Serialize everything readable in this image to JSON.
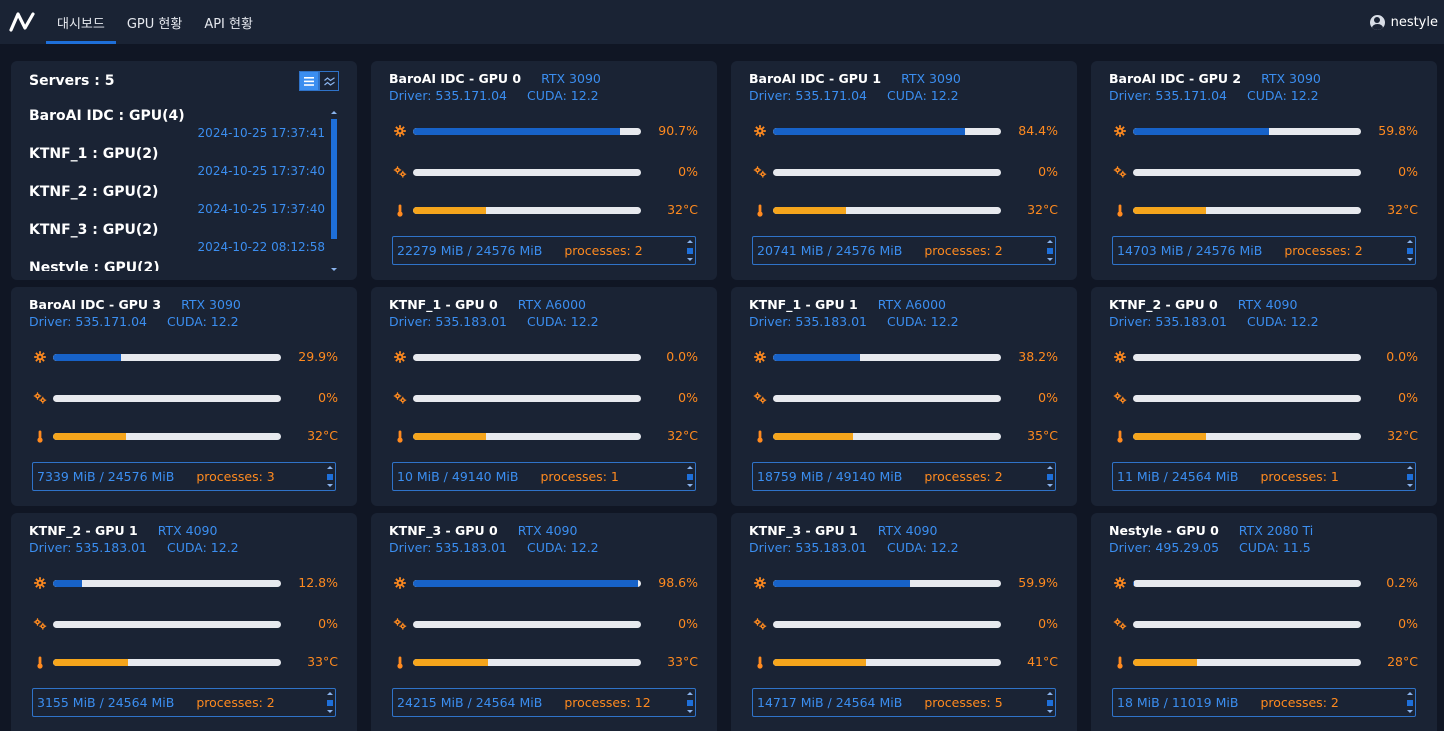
{
  "nav": {
    "tabs": [
      {
        "label": "대시보드",
        "active": true
      },
      {
        "label": "GPU 현황",
        "active": false
      },
      {
        "label": "API 현황",
        "active": false
      }
    ],
    "user": "nestyle"
  },
  "servers": {
    "title": "Servers : 5",
    "items": [
      {
        "name": "BaroAI IDC : GPU(4)",
        "time": "2024-10-25 17:37:41"
      },
      {
        "name": "KTNF_1 : GPU(2)",
        "time": "2024-10-25 17:37:40"
      },
      {
        "name": "KTNF_2 : GPU(2)",
        "time": "2024-10-25 17:37:40"
      },
      {
        "name": "KTNF_3 : GPU(2)",
        "time": "2024-10-22 08:12:58"
      },
      {
        "name": "Nestyle : GPU(2)",
        "time": ""
      }
    ]
  },
  "gpus": [
    {
      "name": "BaroAI IDC - GPU 0",
      "model": "RTX 3090",
      "driver": "Driver: 535.171.04",
      "cuda": "CUDA: 12.2",
      "util": "90.7%",
      "util_frac": 0.907,
      "mem_util": "0%",
      "mem_frac": 0,
      "temp": "32°C",
      "temp_frac": 0.32,
      "memory": "22279 MiB / 24576 MiB",
      "processes": "processes: 2"
    },
    {
      "name": "BaroAI IDC - GPU 1",
      "model": "RTX 3090",
      "driver": "Driver: 535.171.04",
      "cuda": "CUDA: 12.2",
      "util": "84.4%",
      "util_frac": 0.844,
      "mem_util": "0%",
      "mem_frac": 0,
      "temp": "32°C",
      "temp_frac": 0.32,
      "memory": "20741 MiB / 24576 MiB",
      "processes": "processes: 2"
    },
    {
      "name": "BaroAI IDC - GPU 2",
      "model": "RTX 3090",
      "driver": "Driver: 535.171.04",
      "cuda": "CUDA: 12.2",
      "util": "59.8%",
      "util_frac": 0.598,
      "mem_util": "0%",
      "mem_frac": 0,
      "temp": "32°C",
      "temp_frac": 0.32,
      "memory": "14703 MiB / 24576 MiB",
      "processes": "processes: 2"
    },
    {
      "name": "BaroAI IDC - GPU 3",
      "model": "RTX 3090",
      "driver": "Driver: 535.171.04",
      "cuda": "CUDA: 12.2",
      "util": "29.9%",
      "util_frac": 0.299,
      "mem_util": "0%",
      "mem_frac": 0,
      "temp": "32°C",
      "temp_frac": 0.32,
      "memory": "7339 MiB / 24576 MiB",
      "processes": "processes: 3"
    },
    {
      "name": "KTNF_1 - GPU 0",
      "model": "RTX A6000",
      "driver": "Driver: 535.183.01",
      "cuda": "CUDA: 12.2",
      "util": "0.0%",
      "util_frac": 0,
      "mem_util": "0%",
      "mem_frac": 0,
      "temp": "32°C",
      "temp_frac": 0.32,
      "memory": "10 MiB / 49140 MiB",
      "processes": "processes: 1"
    },
    {
      "name": "KTNF_1 - GPU 1",
      "model": "RTX A6000",
      "driver": "Driver: 535.183.01",
      "cuda": "CUDA: 12.2",
      "util": "38.2%",
      "util_frac": 0.382,
      "mem_util": "0%",
      "mem_frac": 0,
      "temp": "35°C",
      "temp_frac": 0.35,
      "memory": "18759 MiB / 49140 MiB",
      "processes": "processes: 2"
    },
    {
      "name": "KTNF_2 - GPU 0",
      "model": "RTX 4090",
      "driver": "Driver: 535.183.01",
      "cuda": "CUDA: 12.2",
      "util": "0.0%",
      "util_frac": 0,
      "mem_util": "0%",
      "mem_frac": 0,
      "temp": "32°C",
      "temp_frac": 0.32,
      "memory": "11 MiB / 24564 MiB",
      "processes": "processes: 1"
    },
    {
      "name": "KTNF_2 - GPU 1",
      "model": "RTX 4090",
      "driver": "Driver: 535.183.01",
      "cuda": "CUDA: 12.2",
      "util": "12.8%",
      "util_frac": 0.128,
      "mem_util": "0%",
      "mem_frac": 0,
      "temp": "33°C",
      "temp_frac": 0.33,
      "memory": "3155 MiB / 24564 MiB",
      "processes": "processes: 2"
    },
    {
      "name": "KTNF_3 - GPU 0",
      "model": "RTX 4090",
      "driver": "Driver: 535.183.01",
      "cuda": "CUDA: 12.2",
      "util": "98.6%",
      "util_frac": 0.986,
      "mem_util": "0%",
      "mem_frac": 0,
      "temp": "33°C",
      "temp_frac": 0.33,
      "memory": "24215 MiB / 24564 MiB",
      "processes": "processes: 12"
    },
    {
      "name": "KTNF_3 - GPU 1",
      "model": "RTX 4090",
      "driver": "Driver: 535.183.01",
      "cuda": "CUDA: 12.2",
      "util": "59.9%",
      "util_frac": 0.599,
      "mem_util": "0%",
      "mem_frac": 0,
      "temp": "41°C",
      "temp_frac": 0.41,
      "memory": "14717 MiB / 24564 MiB",
      "processes": "processes: 5"
    },
    {
      "name": "Nestyle - GPU 0",
      "model": "RTX 2080 Ti",
      "driver": "Driver: 495.29.05",
      "cuda": "CUDA: 11.5",
      "util": "0.2%",
      "util_frac": 0.002,
      "mem_util": "0%",
      "mem_frac": 0,
      "temp": "28°C",
      "temp_frac": 0.28,
      "memory": "18 MiB / 11019 MiB",
      "processes": "processes: 2"
    }
  ],
  "colors": {
    "background": "#101624",
    "card": "#1a2334",
    "accent_blue": "#3b8ef0",
    "util_bar": "#1762c8",
    "temp_bar": "#f5a51c",
    "value_orange": "#ff8a1f"
  },
  "icons": {
    "logo": "brand-logo-icon",
    "user": "user-circle-icon",
    "util": "gear-icon",
    "mem": "gears-icon",
    "temp": "thermometer-icon",
    "view_list": "list-icon",
    "view_chart": "chart-line-icon"
  }
}
